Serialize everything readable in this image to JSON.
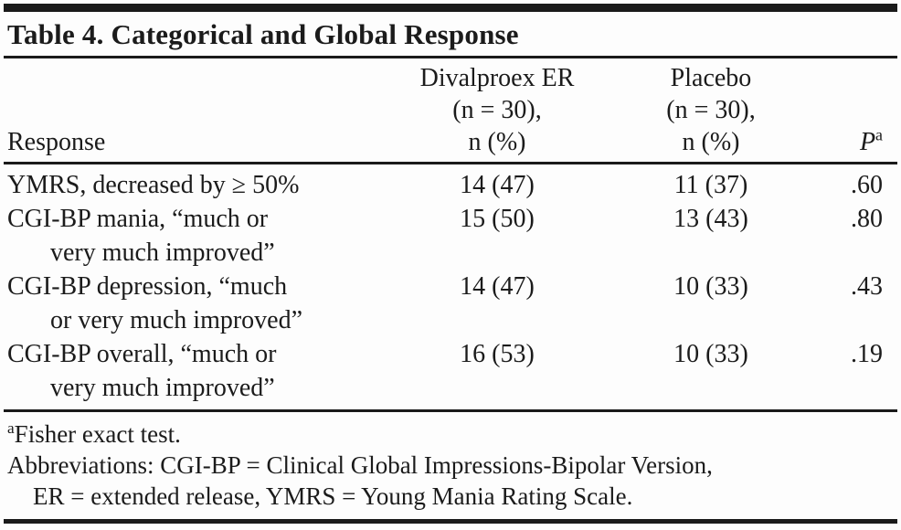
{
  "page": {
    "background": "#fdfdfd",
    "text_color": "#1b1b1b",
    "rule_color": "#1a1a1a"
  },
  "table": {
    "title": "Table 4. Categorical and Global Response",
    "header": {
      "response_label": "Response",
      "divalproex_lines": [
        "Divalproex ER",
        "(n = 30),",
        "n (%)"
      ],
      "placebo_lines": [
        "Placebo",
        "(n = 30),",
        "n (%)"
      ],
      "p_label": "P",
      "p_superscript": "a"
    },
    "rows": [
      {
        "response_line1": "YMRS, decreased by ≥ 50%",
        "response_line2": "",
        "divalproex": "14 (47)",
        "placebo": "11 (37)",
        "p": ".60"
      },
      {
        "response_line1": "CGI-BP mania, “much or",
        "response_line2": "very much improved”",
        "divalproex": "15 (50)",
        "placebo": "13 (43)",
        "p": ".80"
      },
      {
        "response_line1": "CGI-BP depression, “much",
        "response_line2": "or very much improved”",
        "divalproex": "14 (47)",
        "placebo": "10 (33)",
        "p": ".43"
      },
      {
        "response_line1": "CGI-BP overall, “much or",
        "response_line2": "very much improved”",
        "divalproex": "16 (53)",
        "placebo": "10 (33)",
        "p": ".19"
      }
    ],
    "footnotes": {
      "fisher_superscript": "a",
      "fisher_text": "Fisher exact test.",
      "abbreviations_lines": [
        "Abbreviations: CGI-BP = Clinical Global Impressions-Bipolar Version,",
        "ER = extended release, YMRS = Young Mania Rating Scale."
      ]
    }
  }
}
